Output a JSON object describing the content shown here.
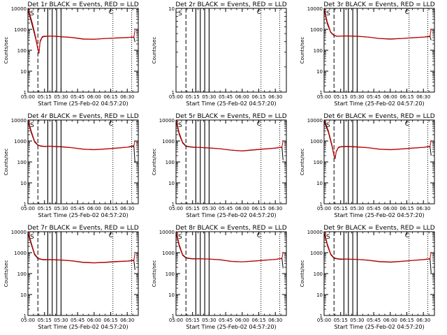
{
  "colors": {
    "background": "#ffffff",
    "axis": "#000000",
    "events": "#000000",
    "lld": "#e00000"
  },
  "chart_data": [
    {
      "type": "line",
      "title": "Det 1r BLACK = Events, RED = LLD",
      "xlabel": "Start Time (25-Feb-02 04:57:20)",
      "ylabel": "Counts/sec",
      "y_scale": "log",
      "ylim": [
        1,
        10000
      ],
      "xlim": [
        "05:00",
        "06:40"
      ],
      "x_tick_labels": [
        "05:00",
        "05:15",
        "05:30",
        "05:45",
        "06:00",
        "06:15",
        "06:30"
      ],
      "y_tick_labels": [
        "1",
        "10",
        "100",
        "1000",
        "10000"
      ],
      "corner_markers": [
        "S",
        "C"
      ],
      "grid": false,
      "has_data": true,
      "dashed_time": "05:09",
      "solid_times": [
        "05:18",
        "05:22",
        "05:26",
        "05:30"
      ],
      "dotted_times": [
        "06:17",
        "06:34"
      ],
      "series": [
        {
          "x": [
            "05:00",
            "05:04",
            "05:07",
            "05:09",
            "05:10",
            "05:11",
            "05:13",
            "05:15",
            "05:20",
            "05:25",
            "05:30",
            "05:40",
            "05:50",
            "06:00",
            "06:10",
            "06:20",
            "06:30",
            "06:36",
            "06:37"
          ],
          "y": [
            9000,
            1500,
            350,
            110,
            70,
            250,
            420,
            450,
            470,
            460,
            440,
            400,
            340,
            330,
            360,
            380,
            400,
            420,
            250
          ]
        },
        {
          "x": [
            "05:00",
            "05:04",
            "05:07",
            "05:09",
            "05:10",
            "05:11",
            "05:13",
            "05:15",
            "05:20",
            "05:25",
            "05:30",
            "05:40",
            "05:50",
            "06:00",
            "06:10",
            "06:20",
            "06:30",
            "06:36",
            "06:37"
          ],
          "y": [
            11000,
            2000,
            420,
            120,
            80,
            280,
            450,
            470,
            480,
            470,
            450,
            410,
            350,
            340,
            370,
            390,
            410,
            430,
            900
          ]
        }
      ]
    },
    {
      "type": "line",
      "title": "Det 2r BLACK = Events, RED = LLD",
      "xlabel": "Start Time (25-Feb-02 04:57:20)",
      "ylabel": "Counts/sec",
      "y_scale": "log",
      "ylim": [
        1,
        10
      ],
      "xlim": [
        "05:00",
        "06:40"
      ],
      "x_tick_labels": [
        "05:00",
        "05:15",
        "05:30",
        "05:45",
        "06:00",
        "06:15",
        "06:30"
      ],
      "y_tick_labels": [
        "1",
        "10"
      ],
      "corner_markers": [
        "S",
        "C"
      ],
      "grid": false,
      "has_data": false,
      "dashed_time": "05:09",
      "solid_times": [
        "05:18",
        "05:22",
        "05:26",
        "05:30"
      ],
      "dotted_times": [
        "06:17",
        "06:34"
      ],
      "series": []
    },
    {
      "type": "line",
      "title": "Det 3r BLACK = Events, RED = LLD",
      "xlabel": "Start Time (25-Feb-02 04:57:20)",
      "ylabel": "Counts/sec",
      "y_scale": "log",
      "ylim": [
        1,
        10000
      ],
      "xlim": [
        "05:00",
        "06:40"
      ],
      "x_tick_labels": [
        "05:00",
        "05:15",
        "05:30",
        "05:45",
        "06:00",
        "06:15",
        "06:30"
      ],
      "y_tick_labels": [
        "1",
        "10",
        "100",
        "1000",
        "10000"
      ],
      "corner_markers": [
        "S",
        "C"
      ],
      "grid": false,
      "has_data": true,
      "dashed_time": "05:09",
      "solid_times": [
        "05:18",
        "05:22",
        "05:26",
        "05:30"
      ],
      "dotted_times": [
        "06:17",
        "06:34"
      ],
      "series": [
        {
          "x": [
            "05:00",
            "05:03",
            "05:06",
            "05:09",
            "05:12",
            "05:15",
            "05:20",
            "05:30",
            "05:40",
            "05:50",
            "06:00",
            "06:10",
            "06:20",
            "06:30",
            "06:36",
            "06:37"
          ],
          "y": [
            9000,
            1800,
            700,
            500,
            460,
            470,
            480,
            460,
            420,
            360,
            340,
            360,
            390,
            420,
            450,
            300
          ]
        },
        {
          "x": [
            "05:00",
            "05:03",
            "05:06",
            "05:09",
            "05:12",
            "05:15",
            "05:20",
            "05:30",
            "05:40",
            "05:50",
            "06:00",
            "06:10",
            "06:20",
            "06:30",
            "06:36",
            "06:37"
          ],
          "y": [
            11000,
            2200,
            750,
            520,
            470,
            480,
            490,
            470,
            430,
            370,
            350,
            370,
            400,
            430,
            470,
            1000
          ]
        }
      ]
    },
    {
      "type": "line",
      "title": "Det 4r BLACK = Events, RED = LLD",
      "xlabel": "Start Time (25-Feb-02 04:57:20)",
      "ylabel": "Counts/sec",
      "y_scale": "log",
      "ylim": [
        1,
        10000
      ],
      "xlim": [
        "05:00",
        "06:40"
      ],
      "x_tick_labels": [
        "05:00",
        "05:15",
        "05:30",
        "05:45",
        "06:00",
        "06:15",
        "06:30"
      ],
      "y_tick_labels": [
        "1",
        "10",
        "100",
        "1000",
        "10000"
      ],
      "corner_markers": [
        "S",
        "C"
      ],
      "grid": false,
      "has_data": true,
      "dashed_time": "05:09",
      "solid_times": [
        "05:18",
        "05:22",
        "05:26",
        "05:30"
      ],
      "dotted_times": [
        "06:17",
        "06:34"
      ],
      "series": [
        {
          "x": [
            "05:00",
            "05:03",
            "05:06",
            "05:09",
            "05:12",
            "05:15",
            "05:20",
            "05:30",
            "05:40",
            "05:50",
            "06:00",
            "06:10",
            "06:20",
            "06:30",
            "06:36",
            "06:37"
          ],
          "y": [
            9000,
            2500,
            900,
            620,
            560,
            540,
            560,
            520,
            470,
            400,
            380,
            410,
            450,
            500,
            560,
            90
          ]
        },
        {
          "x": [
            "05:00",
            "05:03",
            "05:06",
            "05:09",
            "05:12",
            "05:15",
            "05:20",
            "05:30",
            "05:40",
            "05:50",
            "06:00",
            "06:10",
            "06:20",
            "06:30",
            "06:36",
            "06:37"
          ],
          "y": [
            11000,
            3000,
            1000,
            650,
            580,
            560,
            570,
            540,
            480,
            410,
            390,
            420,
            460,
            510,
            600,
            1000
          ]
        }
      ]
    },
    {
      "type": "line",
      "title": "Det 5r BLACK = Events, RED = LLD",
      "xlabel": "Start Time (25-Feb-02 04:57:20)",
      "ylabel": "Counts/sec",
      "y_scale": "log",
      "ylim": [
        1,
        10000
      ],
      "xlim": [
        "05:00",
        "06:40"
      ],
      "x_tick_labels": [
        "05:00",
        "05:15",
        "05:30",
        "05:45",
        "06:00",
        "06:15",
        "06:30"
      ],
      "y_tick_labels": [
        "1",
        "10",
        "100",
        "1000",
        "10000"
      ],
      "corner_markers": [
        "S",
        "C"
      ],
      "grid": false,
      "has_data": true,
      "dashed_time": "05:09",
      "solid_times": [
        "05:18",
        "05:22",
        "05:26",
        "05:30"
      ],
      "dotted_times": [
        "06:17",
        "06:34"
      ],
      "series": [
        {
          "x": [
            "05:00",
            "05:03",
            "05:06",
            "05:09",
            "05:12",
            "05:15",
            "05:20",
            "05:30",
            "05:40",
            "05:50",
            "06:00",
            "06:10",
            "06:20",
            "06:30",
            "06:36",
            "06:37"
          ],
          "y": [
            9000,
            2000,
            800,
            560,
            520,
            500,
            490,
            460,
            420,
            360,
            330,
            370,
            410,
            450,
            500,
            120
          ]
        },
        {
          "x": [
            "05:00",
            "05:03",
            "05:06",
            "05:09",
            "05:12",
            "05:15",
            "05:20",
            "05:30",
            "05:40",
            "05:50",
            "06:00",
            "06:10",
            "06:20",
            "06:30",
            "06:36",
            "06:37"
          ],
          "y": [
            11000,
            2400,
            880,
            590,
            540,
            520,
            500,
            470,
            430,
            370,
            340,
            380,
            420,
            460,
            520,
            1000
          ]
        }
      ]
    },
    {
      "type": "line",
      "title": "Det 6r BLACK = Events, RED = LLD",
      "xlabel": "Start Time (25-Feb-02 04:57:20)",
      "ylabel": "Counts/sec",
      "y_scale": "log",
      "ylim": [
        1,
        10000
      ],
      "xlim": [
        "05:00",
        "06:40"
      ],
      "x_tick_labels": [
        "05:00",
        "05:15",
        "05:30",
        "05:45",
        "06:00",
        "06:15",
        "06:30"
      ],
      "y_tick_labels": [
        "1",
        "10",
        "100",
        "1000",
        "10000"
      ],
      "corner_markers": [
        "S",
        "C"
      ],
      "grid": false,
      "has_data": true,
      "dashed_time": "05:09",
      "solid_times": [
        "05:18",
        "05:22",
        "05:26",
        "05:30"
      ],
      "dotted_times": [
        "06:17",
        "06:34"
      ],
      "series": [
        {
          "x": [
            "05:00",
            "05:04",
            "05:07",
            "05:09",
            "05:10",
            "05:11",
            "05:13",
            "05:15",
            "05:20",
            "05:30",
            "05:40",
            "05:50",
            "06:00",
            "06:10",
            "06:20",
            "06:30",
            "06:36",
            "06:37"
          ],
          "y": [
            9000,
            2500,
            600,
            200,
            140,
            300,
            480,
            520,
            540,
            510,
            470,
            400,
            380,
            410,
            450,
            490,
            540,
            200
          ]
        },
        {
          "x": [
            "05:00",
            "05:04",
            "05:07",
            "05:09",
            "05:10",
            "05:11",
            "05:13",
            "05:15",
            "05:20",
            "05:30",
            "05:40",
            "05:50",
            "06:00",
            "06:10",
            "06:20",
            "06:30",
            "06:36",
            "06:37"
          ],
          "y": [
            11000,
            3000,
            700,
            220,
            160,
            320,
            500,
            540,
            560,
            530,
            480,
            410,
            390,
            420,
            460,
            500,
            560,
            1000
          ]
        }
      ]
    },
    {
      "type": "line",
      "title": "Det 7r BLACK = Events, RED = LLD",
      "xlabel": "Start Time (25-Feb-02 04:57:20)",
      "ylabel": "Counts/sec",
      "y_scale": "log",
      "ylim": [
        1,
        10000
      ],
      "xlim": [
        "05:00",
        "06:40"
      ],
      "x_tick_labels": [
        "05:00",
        "05:15",
        "05:30",
        "05:45",
        "06:00",
        "06:15",
        "06:30"
      ],
      "y_tick_labels": [
        "1",
        "10",
        "100",
        "1000",
        "10000"
      ],
      "corner_markers": [
        "S",
        "C"
      ],
      "grid": false,
      "has_data": true,
      "dashed_time": "05:09",
      "solid_times": [
        "05:18",
        "05:22",
        "05:26",
        "05:30"
      ],
      "dotted_times": [
        "06:17",
        "06:34"
      ],
      "series": [
        {
          "x": [
            "05:00",
            "05:03",
            "05:06",
            "05:09",
            "05:12",
            "05:15",
            "05:20",
            "05:30",
            "05:40",
            "05:50",
            "06:00",
            "06:10",
            "06:20",
            "06:30",
            "06:36",
            "06:37"
          ],
          "y": [
            9000,
            2500,
            800,
            520,
            470,
            450,
            460,
            440,
            400,
            340,
            320,
            340,
            370,
            390,
            420,
            150
          ]
        },
        {
          "x": [
            "05:00",
            "05:03",
            "05:06",
            "05:09",
            "05:12",
            "05:15",
            "05:20",
            "05:30",
            "05:40",
            "05:50",
            "06:00",
            "06:10",
            "06:20",
            "06:30",
            "06:36",
            "06:37"
          ],
          "y": [
            11000,
            3000,
            900,
            550,
            490,
            470,
            470,
            450,
            410,
            350,
            330,
            350,
            380,
            400,
            440,
            900
          ]
        }
      ]
    },
    {
      "type": "line",
      "title": "Det 8r BLACK = Events, RED = LLD",
      "xlabel": "Start Time (25-Feb-02 04:57:20)",
      "ylabel": "Counts/sec",
      "y_scale": "log",
      "ylim": [
        1,
        10000
      ],
      "xlim": [
        "05:00",
        "06:40"
      ],
      "x_tick_labels": [
        "05:00",
        "05:15",
        "05:30",
        "05:45",
        "06:00",
        "06:15",
        "06:30"
      ],
      "y_tick_labels": [
        "1",
        "10",
        "100",
        "1000",
        "10000"
      ],
      "corner_markers": [
        "S",
        "C"
      ],
      "grid": false,
      "has_data": true,
      "dashed_time": "05:09",
      "solid_times": [
        "05:18",
        "05:22",
        "05:26",
        "05:30"
      ],
      "dotted_times": [
        "06:17",
        "06:34"
      ],
      "series": [
        {
          "x": [
            "05:00",
            "05:03",
            "05:06",
            "05:09",
            "05:12",
            "05:15",
            "05:20",
            "05:30",
            "05:40",
            "05:50",
            "06:00",
            "06:10",
            "06:20",
            "06:30",
            "06:36",
            "06:37"
          ],
          "y": [
            9000,
            2000,
            750,
            560,
            520,
            500,
            510,
            490,
            450,
            380,
            360,
            390,
            430,
            470,
            520,
            180
          ]
        },
        {
          "x": [
            "05:00",
            "05:03",
            "05:06",
            "05:09",
            "05:12",
            "05:15",
            "05:20",
            "05:30",
            "05:40",
            "05:50",
            "06:00",
            "06:10",
            "06:20",
            "06:30",
            "06:36",
            "06:37"
          ],
          "y": [
            11000,
            2400,
            820,
            590,
            540,
            520,
            520,
            500,
            460,
            390,
            370,
            400,
            440,
            480,
            540,
            1000
          ]
        }
      ]
    },
    {
      "type": "line",
      "title": "Det 9r BLACK = Events, RED = LLD",
      "xlabel": "Start Time (25-Feb-02 04:57:20)",
      "ylabel": "Counts/sec",
      "y_scale": "log",
      "ylim": [
        1,
        10000
      ],
      "xlim": [
        "05:00",
        "06:40"
      ],
      "x_tick_labels": [
        "05:00",
        "05:15",
        "05:30",
        "05:45",
        "06:00",
        "06:15",
        "06:30"
      ],
      "y_tick_labels": [
        "1",
        "10",
        "100",
        "1000",
        "10000"
      ],
      "corner_markers": [
        "S",
        "C"
      ],
      "grid": false,
      "has_data": true,
      "dashed_time": "05:09",
      "solid_times": [
        "05:18",
        "05:22",
        "05:26",
        "05:30"
      ],
      "dotted_times": [
        "06:17",
        "06:34"
      ],
      "series": [
        {
          "x": [
            "05:00",
            "05:03",
            "05:06",
            "05:09",
            "05:12",
            "05:15",
            "05:20",
            "05:30",
            "05:40",
            "05:50",
            "06:00",
            "06:10",
            "06:20",
            "06:30",
            "06:36",
            "06:37"
          ],
          "y": [
            9000,
            2200,
            800,
            540,
            500,
            480,
            490,
            470,
            430,
            370,
            350,
            380,
            420,
            460,
            500,
            110
          ]
        },
        {
          "x": [
            "05:00",
            "05:03",
            "05:06",
            "05:09",
            "05:12",
            "05:15",
            "05:20",
            "05:30",
            "05:40",
            "05:50",
            "06:00",
            "06:10",
            "06:20",
            "06:30",
            "06:36",
            "06:37"
          ],
          "y": [
            11000,
            2600,
            880,
            570,
            520,
            500,
            500,
            480,
            440,
            380,
            360,
            390,
            430,
            470,
            520,
            1000
          ]
        }
      ]
    }
  ]
}
